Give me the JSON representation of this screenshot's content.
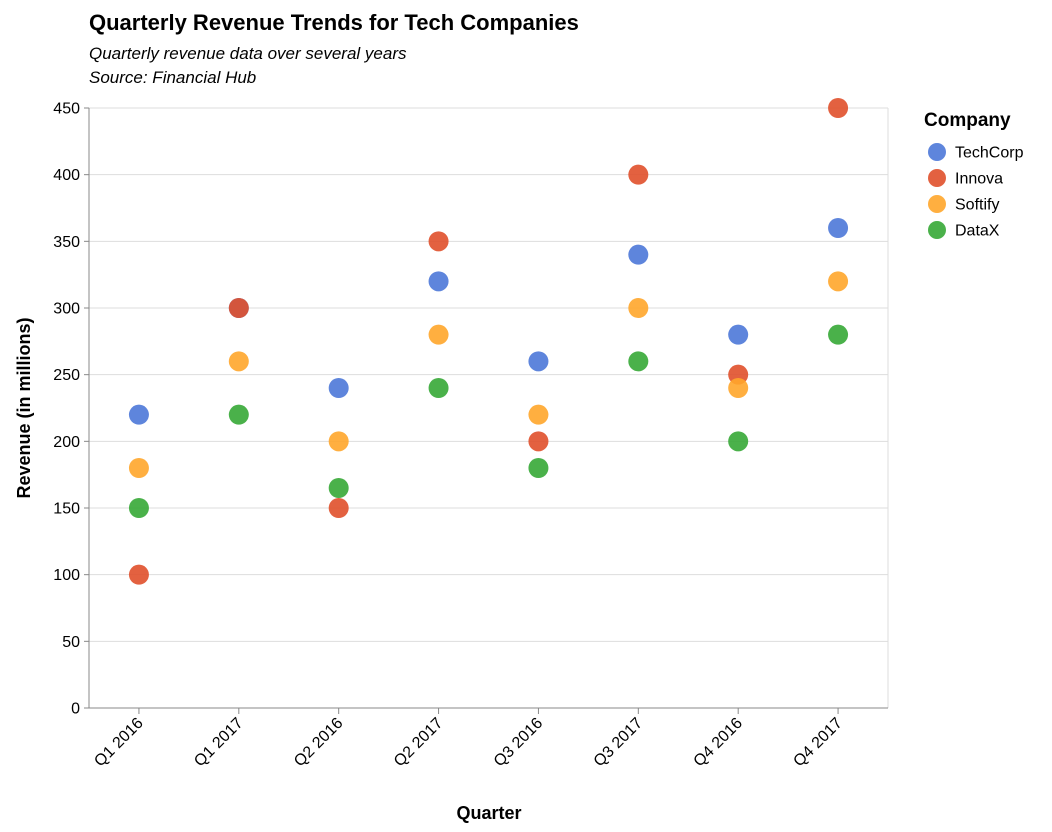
{
  "chart_data": {
    "type": "scatter",
    "title": "Quarterly Revenue Trends for Tech Companies",
    "subtitle": [
      "Quarterly revenue data over several years",
      "Source: Financial Hub"
    ],
    "xlabel": "Quarter",
    "ylabel": "Revenue (in millions)",
    "categories": [
      "Q1 2016",
      "Q1 2017",
      "Q2 2016",
      "Q2 2017",
      "Q3 2016",
      "Q3 2017",
      "Q4 2016",
      "Q4 2017"
    ],
    "ylim": [
      0,
      450
    ],
    "yticks": [
      0,
      50,
      100,
      150,
      200,
      250,
      300,
      350,
      400,
      450
    ],
    "grid": true,
    "legend": {
      "title": "Company",
      "position": "right"
    },
    "series": [
      {
        "name": "TechCorp",
        "color": "#4c78d8",
        "values": [
          220,
          300,
          240,
          320,
          260,
          340,
          280,
          360
        ]
      },
      {
        "name": "Innova",
        "color": "#e0502b",
        "values": [
          100,
          300,
          150,
          350,
          200,
          400,
          250,
          450
        ]
      },
      {
        "name": "Softify",
        "color": "#ffa62b",
        "values": [
          180,
          260,
          200,
          280,
          220,
          300,
          240,
          320
        ]
      },
      {
        "name": "DataX",
        "color": "#36a936",
        "values": [
          150,
          220,
          165,
          240,
          180,
          260,
          200,
          280
        ]
      }
    ]
  }
}
